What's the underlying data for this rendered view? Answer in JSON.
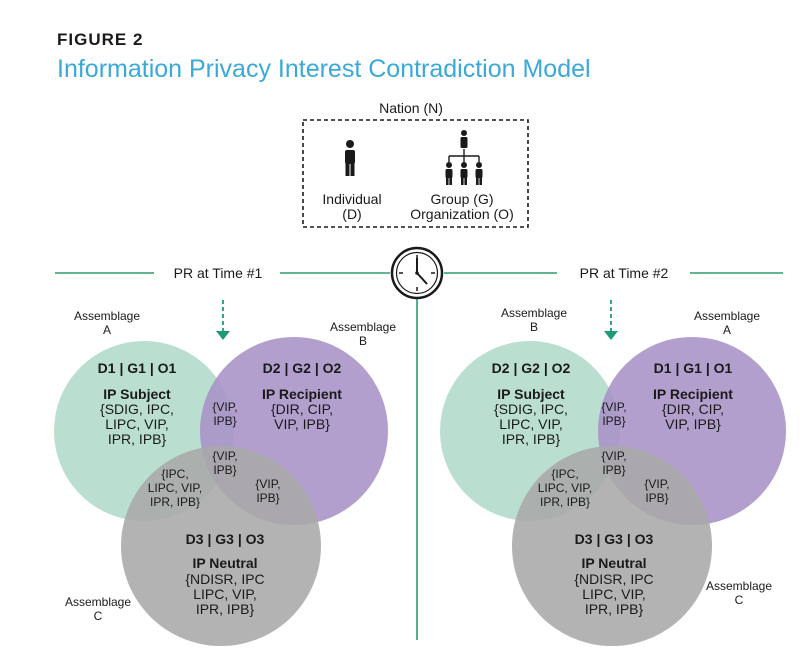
{
  "figure": {
    "label": "FIGURE 2",
    "title": "Information Privacy Interest Contradiction Model"
  },
  "colors": {
    "title": "#3aa9d9",
    "line": "#2a9d6a",
    "subject_circle": "#b3dccb",
    "recipient_circle": "#a992c6",
    "neutral_circle": "#a8a8a8",
    "arrow": "#1e9a7a"
  },
  "nation": {
    "label": "Nation (N)",
    "individual_icon": "person-icon",
    "group_icon": "org-chart-icon",
    "individual_line1": "Individual",
    "individual_line2": "(D)",
    "group_line1": "Group (G)",
    "group_line2": "Organization (O)"
  },
  "timeline": {
    "clock_icon": "clock-icon",
    "time1": "PR at Time #1",
    "time2": "PR at Time #2"
  },
  "left": {
    "assemblage_a": [
      "Assemblage",
      "A"
    ],
    "assemblage_b": [
      "Assemblage",
      "B"
    ],
    "assemblage_c": [
      "Assemblage",
      "C"
    ],
    "subject": {
      "code": "D1 | G1 | O1",
      "title": "IP Subject",
      "lines": [
        "{SDIG, IPC,",
        "LIPC, VIP,",
        "IPR, IPB}"
      ]
    },
    "recipient": {
      "code": "D2 | G2 | O2",
      "title": "IP Recipient",
      "lines": [
        "{DIR, CIP,",
        "VIP, IPB}"
      ]
    },
    "neutral": {
      "code": "D3 | G3 | O3",
      "title": "IP Neutral",
      "lines": [
        "{NDISR, IPC",
        "LIPC, VIP,",
        "IPR, IPB}"
      ]
    },
    "overlap_ab": [
      "{VIP,",
      "IPB}"
    ],
    "overlap_center": [
      "{VIP,",
      "IPB}"
    ],
    "overlap_ac": [
      "{IPC,",
      "LIPC, VIP,",
      "IPR, IPB}"
    ],
    "overlap_bc": [
      "{VIP,",
      "IPB}"
    ]
  },
  "right": {
    "assemblage_b": [
      "Assemblage",
      "B"
    ],
    "assemblage_a": [
      "Assemblage",
      "A"
    ],
    "assemblage_c": [
      "Assemblage",
      "C"
    ],
    "subject": {
      "code": "D2 | G2 | O2",
      "title": "IP Subject",
      "lines": [
        "{SDIG, IPC,",
        "LIPC, VIP,",
        "IPR, IPB}"
      ]
    },
    "recipient": {
      "code": "D1 | G1 | O1",
      "title": "IP Recipient",
      "lines": [
        "{DIR, CIP,",
        "VIP, IPB}"
      ]
    },
    "neutral": {
      "code": "D3 | G3 | O3",
      "title": "IP Neutral",
      "lines": [
        "{NDISR, IPC",
        "LIPC, VIP,",
        "IPR, IPB}"
      ]
    },
    "overlap_ab": [
      "{VIP,",
      "IPB}"
    ],
    "overlap_center": [
      "{VIP,",
      "IPB}"
    ],
    "overlap_ac": [
      "{IPC,",
      "LIPC, VIP,",
      "IPR, IPB}"
    ],
    "overlap_bc": [
      "{VIP,",
      "IPB}"
    ]
  }
}
